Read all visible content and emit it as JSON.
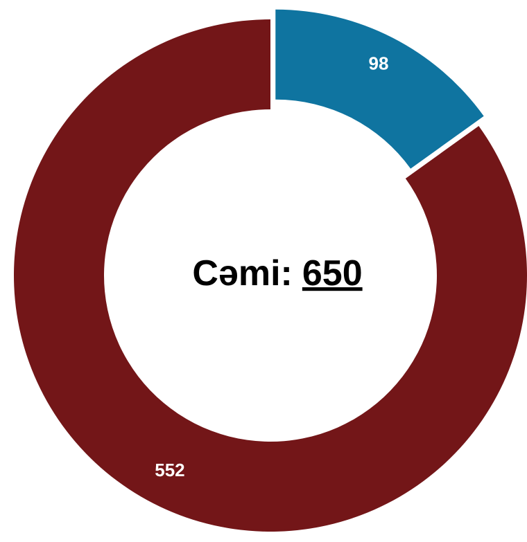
{
  "chart_data": {
    "type": "donut",
    "values": [
      98,
      552
    ],
    "colors": [
      "#0f74a0",
      "#731618"
    ],
    "exploded_index": 0,
    "center_label": "Cəmi:",
    "total": 650
  }
}
